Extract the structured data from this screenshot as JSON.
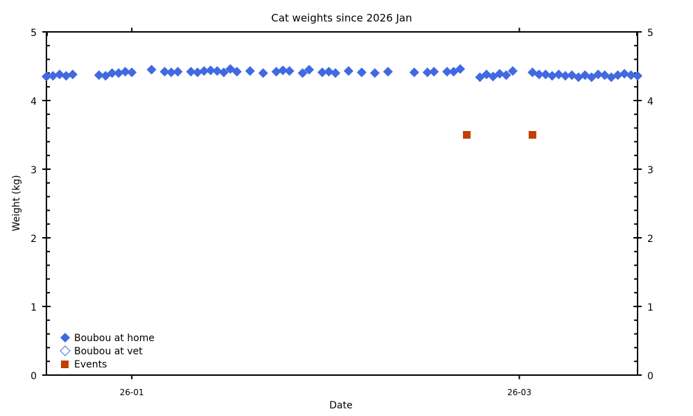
{
  "chart_data": {
    "type": "scatter",
    "title": "Cat weights since 2026 Jan",
    "xlabel": "Date",
    "ylabel": "Weight (kg)",
    "ylim": [
      0,
      5
    ],
    "y_ticks": [
      "0",
      "1",
      "2",
      "3",
      "4",
      "5"
    ],
    "y_minor_step": 0.2,
    "x_ticks": [
      "26-01",
      "26-03"
    ],
    "x_tick_dates": [
      "2026-01-01",
      "2026-03-01"
    ],
    "xlim": [
      "2025-12-19",
      "2026-03-19"
    ],
    "grid": false,
    "legend_position": "lower-left",
    "legend": [
      "Boubou at home",
      "Boubou at vet",
      "Events"
    ],
    "series": [
      {
        "name": "Boubou at home",
        "marker": "filled-diamond",
        "color": "#4169e1",
        "points": [
          {
            "x": "2025-12-19",
            "y": 4.35
          },
          {
            "x": "2025-12-20",
            "y": 4.36
          },
          {
            "x": "2025-12-21",
            "y": 4.38
          },
          {
            "x": "2025-12-22",
            "y": 4.36
          },
          {
            "x": "2025-12-23",
            "y": 4.38
          },
          {
            "x": "2025-12-27",
            "y": 4.37
          },
          {
            "x": "2025-12-28",
            "y": 4.36
          },
          {
            "x": "2025-12-29",
            "y": 4.4
          },
          {
            "x": "2025-12-30",
            "y": 4.4
          },
          {
            "x": "2025-12-31",
            "y": 4.42
          },
          {
            "x": "2026-01-01",
            "y": 4.41
          },
          {
            "x": "2026-01-04",
            "y": 4.45
          },
          {
            "x": "2026-01-06",
            "y": 4.42
          },
          {
            "x": "2026-01-07",
            "y": 4.41
          },
          {
            "x": "2026-01-08",
            "y": 4.42
          },
          {
            "x": "2026-01-10",
            "y": 4.42
          },
          {
            "x": "2026-01-11",
            "y": 4.41
          },
          {
            "x": "2026-01-12",
            "y": 4.43
          },
          {
            "x": "2026-01-13",
            "y": 4.44
          },
          {
            "x": "2026-01-14",
            "y": 4.43
          },
          {
            "x": "2026-01-15",
            "y": 4.41
          },
          {
            "x": "2026-01-16",
            "y": 4.46
          },
          {
            "x": "2026-01-17",
            "y": 4.42
          },
          {
            "x": "2026-01-19",
            "y": 4.43
          },
          {
            "x": "2026-01-21",
            "y": 4.4
          },
          {
            "x": "2026-01-23",
            "y": 4.42
          },
          {
            "x": "2026-01-24",
            "y": 4.44
          },
          {
            "x": "2026-01-25",
            "y": 4.43
          },
          {
            "x": "2026-01-27",
            "y": 4.4
          },
          {
            "x": "2026-01-28",
            "y": 4.45
          },
          {
            "x": "2026-01-30",
            "y": 4.41
          },
          {
            "x": "2026-01-31",
            "y": 4.42
          },
          {
            "x": "2026-02-01",
            "y": 4.4
          },
          {
            "x": "2026-02-03",
            "y": 4.43
          },
          {
            "x": "2026-02-05",
            "y": 4.41
          },
          {
            "x": "2026-02-07",
            "y": 4.4
          },
          {
            "x": "2026-02-09",
            "y": 4.42
          },
          {
            "x": "2026-02-13",
            "y": 4.41
          },
          {
            "x": "2026-02-15",
            "y": 4.41
          },
          {
            "x": "2026-02-16",
            "y": 4.42
          },
          {
            "x": "2026-02-18",
            "y": 4.42
          },
          {
            "x": "2026-02-19",
            "y": 4.42
          },
          {
            "x": "2026-02-20",
            "y": 4.46
          },
          {
            "x": "2026-02-23",
            "y": 4.34
          },
          {
            "x": "2026-02-24",
            "y": 4.38
          },
          {
            "x": "2026-02-25",
            "y": 4.35
          },
          {
            "x": "2026-02-26",
            "y": 4.39
          },
          {
            "x": "2026-02-27",
            "y": 4.37
          },
          {
            "x": "2026-02-28",
            "y": 4.43
          },
          {
            "x": "2026-03-03",
            "y": 4.41
          },
          {
            "x": "2026-03-04",
            "y": 4.38
          },
          {
            "x": "2026-03-05",
            "y": 4.38
          },
          {
            "x": "2026-03-06",
            "y": 4.36
          },
          {
            "x": "2026-03-07",
            "y": 4.38
          },
          {
            "x": "2026-03-08",
            "y": 4.36
          },
          {
            "x": "2026-03-09",
            "y": 4.37
          },
          {
            "x": "2026-03-10",
            "y": 4.34
          },
          {
            "x": "2026-03-11",
            "y": 4.37
          },
          {
            "x": "2026-03-12",
            "y": 4.34
          },
          {
            "x": "2026-03-13",
            "y": 4.38
          },
          {
            "x": "2026-03-14",
            "y": 4.37
          },
          {
            "x": "2026-03-15",
            "y": 4.34
          },
          {
            "x": "2026-03-16",
            "y": 4.37
          },
          {
            "x": "2026-03-17",
            "y": 4.39
          },
          {
            "x": "2026-03-18",
            "y": 4.37
          },
          {
            "x": "2026-03-19",
            "y": 4.36
          }
        ]
      },
      {
        "name": "Boubou at vet",
        "marker": "open-diamond",
        "color": "#4169e1",
        "points": []
      },
      {
        "name": "Events",
        "marker": "filled-square",
        "color": "#c04000",
        "points": [
          {
            "x": "2026-02-21",
            "y": 3.5
          },
          {
            "x": "2026-03-03",
            "y": 3.5
          }
        ]
      }
    ]
  }
}
